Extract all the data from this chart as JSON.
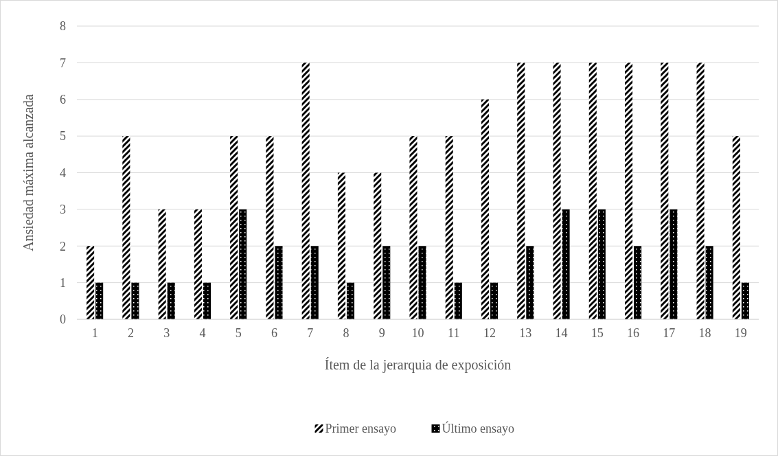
{
  "chart_data": {
    "type": "bar",
    "xlabel": "Ítem de la jerarquia de exposición",
    "ylabel": "Ansiedad máxima alcanzada",
    "categories": [
      "1",
      "2",
      "3",
      "4",
      "5",
      "6",
      "7",
      "8",
      "9",
      "10",
      "11",
      "12",
      "13",
      "14",
      "15",
      "16",
      "17",
      "18",
      "19"
    ],
    "series": [
      {
        "name": "Primer ensayo",
        "color": "#000000",
        "values": [
          2,
          5,
          3,
          3,
          5,
          5,
          7,
          4,
          4,
          5,
          5,
          6,
          7,
          7,
          7,
          7,
          7,
          7,
          5
        ]
      },
      {
        "name": "Último ensayo",
        "color": "#000000",
        "values": [
          1,
          1,
          1,
          1,
          3,
          2,
          2,
          1,
          2,
          2,
          1,
          1,
          2,
          3,
          3,
          2,
          3,
          2,
          1
        ]
      }
    ],
    "ylim": [
      0,
      8
    ],
    "yticks": [
      0,
      1,
      2,
      3,
      4,
      5,
      6,
      7,
      8
    ],
    "grid": "y",
    "legend": "bottom"
  }
}
